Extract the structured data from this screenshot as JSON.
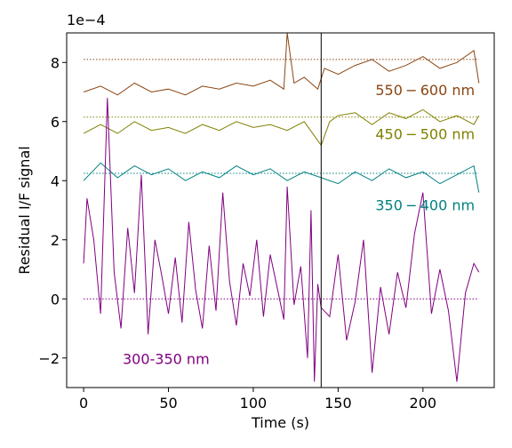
{
  "chart_data": {
    "type": "line",
    "title": "",
    "xlabel": "Time (s)",
    "ylabel": "Residual I/F signal",
    "y_scale_label": "1e−4",
    "xlim": [
      -10,
      242
    ],
    "ylim": [
      -3.0,
      9.0
    ],
    "x_ticks": [
      0,
      50,
      100,
      150,
      200
    ],
    "y_ticks": [
      -2,
      0,
      2,
      4,
      6,
      8
    ],
    "x_tick_labels": [
      "0",
      "50",
      "100",
      "150",
      "200"
    ],
    "y_tick_labels": [
      "−2",
      "0",
      "2",
      "4",
      "6",
      "8"
    ],
    "vertical_line_x": 140,
    "grid": false,
    "series": [
      {
        "name": "550 − 600 nm",
        "color": "#8B4513",
        "baseline": 8.1,
        "points": [
          [
            0,
            7.0
          ],
          [
            10,
            7.2
          ],
          [
            20,
            6.9
          ],
          [
            30,
            7.3
          ],
          [
            40,
            7.0
          ],
          [
            50,
            7.1
          ],
          [
            60,
            6.9
          ],
          [
            70,
            7.2
          ],
          [
            80,
            7.1
          ],
          [
            90,
            7.3
          ],
          [
            100,
            7.2
          ],
          [
            110,
            7.4
          ],
          [
            118,
            7.1
          ],
          [
            120,
            9.0
          ],
          [
            124,
            7.3
          ],
          [
            130,
            7.5
          ],
          [
            138,
            7.1
          ],
          [
            142,
            7.8
          ],
          [
            150,
            7.6
          ],
          [
            160,
            7.9
          ],
          [
            170,
            8.1
          ],
          [
            180,
            7.7
          ],
          [
            190,
            7.9
          ],
          [
            200,
            8.2
          ],
          [
            210,
            7.8
          ],
          [
            220,
            8.0
          ],
          [
            230,
            8.4
          ],
          [
            233,
            7.3
          ]
        ],
        "label_x": 172,
        "label_y": 6.9
      },
      {
        "name": "450 − 500 nm",
        "color": "#808000",
        "baseline": 6.15,
        "points": [
          [
            0,
            5.6
          ],
          [
            10,
            5.9
          ],
          [
            20,
            5.6
          ],
          [
            30,
            6.0
          ],
          [
            40,
            5.7
          ],
          [
            50,
            5.8
          ],
          [
            60,
            5.6
          ],
          [
            70,
            5.9
          ],
          [
            80,
            5.7
          ],
          [
            90,
            6.0
          ],
          [
            100,
            5.8
          ],
          [
            110,
            5.9
          ],
          [
            120,
            5.7
          ],
          [
            130,
            6.0
          ],
          [
            140,
            5.2
          ],
          [
            145,
            6.0
          ],
          [
            150,
            6.2
          ],
          [
            160,
            6.3
          ],
          [
            170,
            5.9
          ],
          [
            180,
            6.3
          ],
          [
            190,
            6.1
          ],
          [
            200,
            6.4
          ],
          [
            210,
            6.0
          ],
          [
            220,
            6.2
          ],
          [
            230,
            5.9
          ],
          [
            233,
            6.2
          ]
        ],
        "label_x": 172,
        "label_y": 5.4
      },
      {
        "name": "350 − 400 nm",
        "color": "#008080",
        "baseline": 4.25,
        "points": [
          [
            0,
            4.0
          ],
          [
            10,
            4.6
          ],
          [
            20,
            4.1
          ],
          [
            30,
            4.5
          ],
          [
            40,
            4.2
          ],
          [
            50,
            4.4
          ],
          [
            60,
            4.0
          ],
          [
            70,
            4.3
          ],
          [
            80,
            4.1
          ],
          [
            90,
            4.5
          ],
          [
            100,
            4.2
          ],
          [
            110,
            4.4
          ],
          [
            120,
            4.0
          ],
          [
            130,
            4.3
          ],
          [
            140,
            4.1
          ],
          [
            150,
            3.9
          ],
          [
            160,
            4.3
          ],
          [
            170,
            4.0
          ],
          [
            180,
            4.4
          ],
          [
            190,
            4.1
          ],
          [
            200,
            4.3
          ],
          [
            210,
            3.9
          ],
          [
            220,
            4.2
          ],
          [
            230,
            4.5
          ],
          [
            233,
            3.6
          ]
        ],
        "label_x": 172,
        "label_y": 3.0
      },
      {
        "name": "300-350 nm",
        "color": "#800080",
        "baseline": 0.0,
        "points": [
          [
            0,
            1.2
          ],
          [
            2,
            3.4
          ],
          [
            6,
            2.0
          ],
          [
            10,
            -0.5
          ],
          [
            14,
            6.8
          ],
          [
            18,
            0.9
          ],
          [
            22,
            -1.0
          ],
          [
            26,
            2.4
          ],
          [
            30,
            0.2
          ],
          [
            34,
            4.2
          ],
          [
            38,
            -1.2
          ],
          [
            42,
            2.0
          ],
          [
            46,
            0.8
          ],
          [
            50,
            -0.5
          ],
          [
            54,
            1.4
          ],
          [
            58,
            -0.8
          ],
          [
            62,
            2.6
          ],
          [
            66,
            0.3
          ],
          [
            70,
            -1.0
          ],
          [
            74,
            1.8
          ],
          [
            78,
            -0.4
          ],
          [
            82,
            3.6
          ],
          [
            86,
            0.6
          ],
          [
            90,
            -0.9
          ],
          [
            94,
            1.2
          ],
          [
            98,
            0.1
          ],
          [
            102,
            2.0
          ],
          [
            106,
            -0.6
          ],
          [
            110,
            1.5
          ],
          [
            114,
            0.4
          ],
          [
            118,
            -0.7
          ],
          [
            120,
            3.8
          ],
          [
            124,
            -0.2
          ],
          [
            128,
            1.1
          ],
          [
            132,
            -2.0
          ],
          [
            134,
            3.0
          ],
          [
            136,
            -2.8
          ],
          [
            138,
            0.5
          ],
          [
            140,
            -0.3
          ],
          [
            145,
            -0.6
          ],
          [
            150,
            1.5
          ],
          [
            155,
            -1.4
          ],
          [
            160,
            -0.1
          ],
          [
            165,
            2.0
          ],
          [
            170,
            -2.5
          ],
          [
            175,
            0.4
          ],
          [
            180,
            -1.2
          ],
          [
            185,
            0.9
          ],
          [
            190,
            -0.3
          ],
          [
            195,
            2.2
          ],
          [
            200,
            3.6
          ],
          [
            205,
            -0.5
          ],
          [
            210,
            1.0
          ],
          [
            215,
            -0.4
          ],
          [
            220,
            -2.8
          ],
          [
            225,
            0.2
          ],
          [
            230,
            1.2
          ],
          [
            233,
            0.9
          ]
        ],
        "label_x": 23,
        "label_y": -2.2
      }
    ]
  }
}
